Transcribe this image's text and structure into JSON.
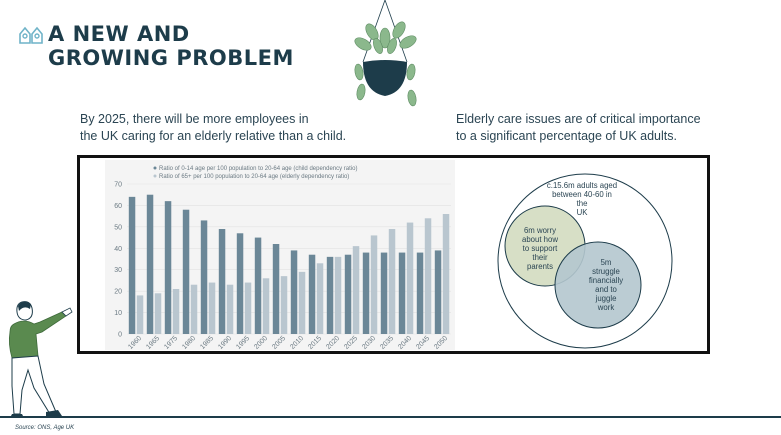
{
  "header": {
    "title_line1": "A NEW AND",
    "title_line2": "GROWING PROBLEM"
  },
  "left_text": {
    "line1": "By 2025, there will be more employees in",
    "line2": "the UK caring for an elderly relative than a child."
  },
  "right_text": {
    "line1": "Elderly care issues are of critical importance",
    "line2": "to a significant percentage of UK adults."
  },
  "venn": {
    "outer_label": [
      "c.15.6m adults aged",
      "between 40-60 in",
      "the",
      "UK"
    ],
    "left_label": [
      "6m worry",
      "about how",
      "to support",
      "their",
      "parents"
    ],
    "right_label": [
      "5m",
      "struggle",
      "financially",
      "and to",
      "juggle",
      "work"
    ]
  },
  "source": "Source: ONS, Age UK",
  "colors": {
    "navy": "#1d3c4a",
    "child_series": "#6b8797",
    "elderly_series": "#b9c6cf",
    "venn_left_fill": "#d7dfc6",
    "venn_right_fill": "#b4c6ce",
    "plant_green": "#8bb88c",
    "plant_pot": "#1d3c4a"
  },
  "chart_data": {
    "type": "bar",
    "categories": [
      "1960",
      "1965",
      "1975",
      "1980",
      "1985",
      "1990",
      "1995",
      "2000",
      "2005",
      "2010",
      "2015",
      "2020",
      "2025",
      "2030",
      "2035",
      "2040",
      "2045",
      "2050"
    ],
    "series": [
      {
        "name": "Ratio of 0-14 age per 100 population to 20-64 age (child dependency ratio)",
        "color": "#6b8797",
        "values": [
          64,
          65,
          62,
          58,
          53,
          49,
          47,
          45,
          42,
          39,
          37,
          36,
          37,
          38,
          38,
          38,
          38,
          39
        ]
      },
      {
        "name": "Ratio of 65+ per 100 population to 20-64 age (elderly dependency ratio)",
        "color": "#b9c6cf",
        "values": [
          18,
          19,
          21,
          23,
          24,
          23,
          24,
          26,
          27,
          29,
          33,
          36,
          41,
          46,
          49,
          52,
          54,
          56
        ]
      }
    ],
    "yticks": [
      0,
      10,
      20,
      30,
      40,
      50,
      60,
      70
    ],
    "ylim": [
      0,
      70
    ],
    "grid": true,
    "legend_position": "top"
  }
}
